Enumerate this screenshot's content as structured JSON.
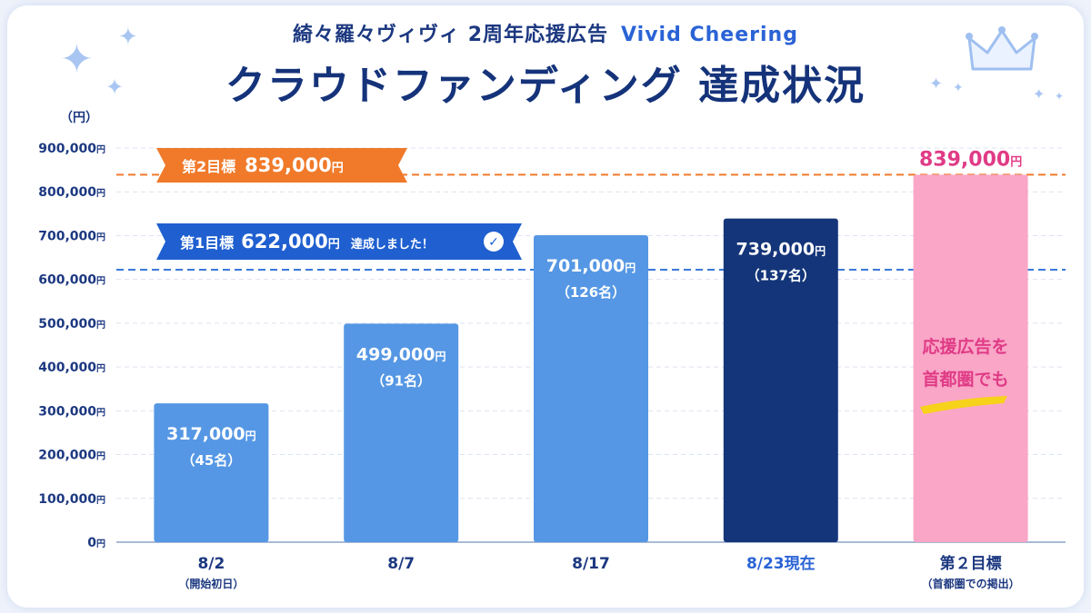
{
  "header": {
    "subtitle_jp": "綺々羅々ヴィヴィ 2周年応援広告",
    "subtitle_en": "Vivid Cheering",
    "title": "クラウドファンディング 達成状況"
  },
  "y_unit": "（円）",
  "yen": "円",
  "goal2_banner": {
    "label": "第2目標",
    "amount": "839,000",
    "yen": "円"
  },
  "goal1_banner": {
    "label": "第1目標",
    "amount": "622,000",
    "yen": "円",
    "status": "達成しました！",
    "check": "✓"
  },
  "annotation": {
    "line1": "応援広告を",
    "line2": "首都圏でも"
  },
  "colors": {
    "bar_light": "#5597e4",
    "bar_current": "#143579",
    "bar_goal": "#f9a6c7",
    "goal2_line": "#f07a2a",
    "goal1_line": "#3a78dc",
    "goal_value_text": "#e03b86",
    "current_label": "#2a63d6"
  },
  "chart_data": {
    "type": "bar",
    "title": "クラウドファンディング 達成状況",
    "ylabel": "（円）",
    "ylim": [
      0,
      900000
    ],
    "yticks": [
      {
        "value": 0,
        "label": "0"
      },
      {
        "value": 100000,
        "label": "100,000"
      },
      {
        "value": 200000,
        "label": "200,000"
      },
      {
        "value": 300000,
        "label": "300,000"
      },
      {
        "value": 400000,
        "label": "400,000"
      },
      {
        "value": 500000,
        "label": "500,000"
      },
      {
        "value": 600000,
        "label": "600,000"
      },
      {
        "value": 700000,
        "label": "700,000"
      },
      {
        "value": 800000,
        "label": "800,000"
      },
      {
        "value": 900000,
        "label": "900,000"
      }
    ],
    "grid": true,
    "bars": [
      {
        "category": "8/2",
        "sub": "（開始初日）",
        "value": 317000,
        "value_label": "317,000",
        "count_label": "（45名）",
        "style": "light"
      },
      {
        "category": "8/7",
        "sub": "",
        "value": 499000,
        "value_label": "499,000",
        "count_label": "（91名）",
        "style": "light"
      },
      {
        "category": "8/17",
        "sub": "",
        "value": 701000,
        "value_label": "701,000",
        "count_label": "（126名）",
        "style": "light"
      },
      {
        "category": "8/23現在",
        "sub": "",
        "value": 739000,
        "value_label": "739,000",
        "count_label": "（137名）",
        "style": "current"
      },
      {
        "category": "第２目標",
        "sub": "（首都圏での掲出）",
        "value": 839000,
        "value_label": "839,000",
        "count_label": "",
        "style": "goal"
      }
    ],
    "goal_lines": [
      {
        "name": "第2目標",
        "value": 839000
      },
      {
        "name": "第1目標",
        "value": 622000
      }
    ]
  }
}
